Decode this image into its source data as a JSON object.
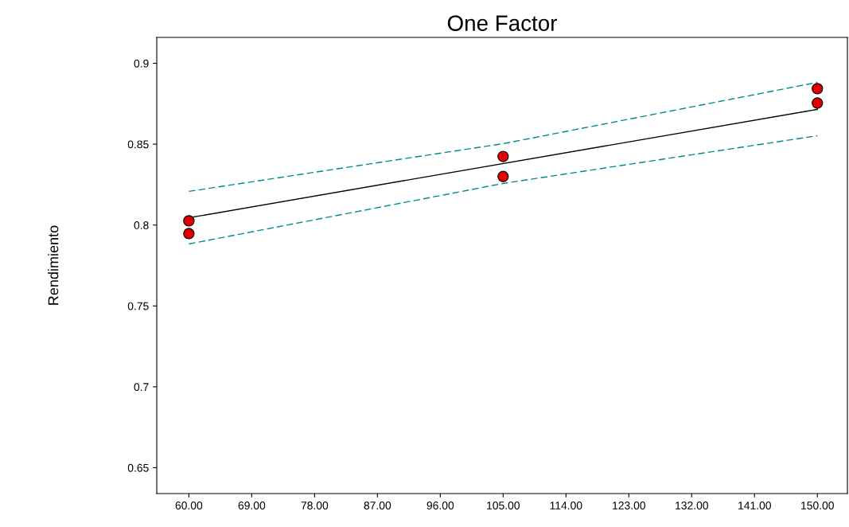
{
  "chart_data": {
    "type": "scatter",
    "title": "One Factor",
    "ylabel": "Rendimiento",
    "xlim": [
      55.4,
      154.3
    ],
    "ylim": [
      0.634,
      0.916
    ],
    "xticks": [
      {
        "value": 60,
        "label": "60.00"
      },
      {
        "value": 69,
        "label": "69.00"
      },
      {
        "value": 78,
        "label": "78.00"
      },
      {
        "value": 87,
        "label": "87.00"
      },
      {
        "value": 96,
        "label": "96.00"
      },
      {
        "value": 105,
        "label": "105.00"
      },
      {
        "value": 114,
        "label": "114.00"
      },
      {
        "value": 123,
        "label": "123.00"
      },
      {
        "value": 132,
        "label": "132.00"
      },
      {
        "value": 141,
        "label": "141.00"
      },
      {
        "value": 150,
        "label": "150.00"
      }
    ],
    "yticks": [
      0.65,
      0.7,
      0.75,
      0.8,
      0.85,
      0.9
    ],
    "grid": false,
    "legend": false,
    "series": [
      {
        "type": "line",
        "color": "#000000",
        "line_style": "solid",
        "marker": "none",
        "x": [
          60,
          150
        ],
        "values": [
          0.8045,
          0.8715
        ]
      },
      {
        "type": "line",
        "color": "#008b8b",
        "line_style": "dashed",
        "marker": "none",
        "x": [
          60,
          105,
          150
        ],
        "values": [
          0.8208,
          0.8503,
          0.8882
        ]
      },
      {
        "type": "line",
        "color": "#008b8b",
        "line_style": "dashed",
        "marker": "none",
        "x": [
          60,
          105,
          150
        ],
        "values": [
          0.7883,
          0.8257,
          0.8552
        ]
      },
      {
        "color": "#e00000",
        "marker": "circle",
        "x": [
          60,
          60,
          105,
          105,
          150,
          150
        ],
        "values": [
          0.8026,
          0.7947,
          0.8424,
          0.83,
          0.8843,
          0.8754
        ]
      }
    ]
  }
}
